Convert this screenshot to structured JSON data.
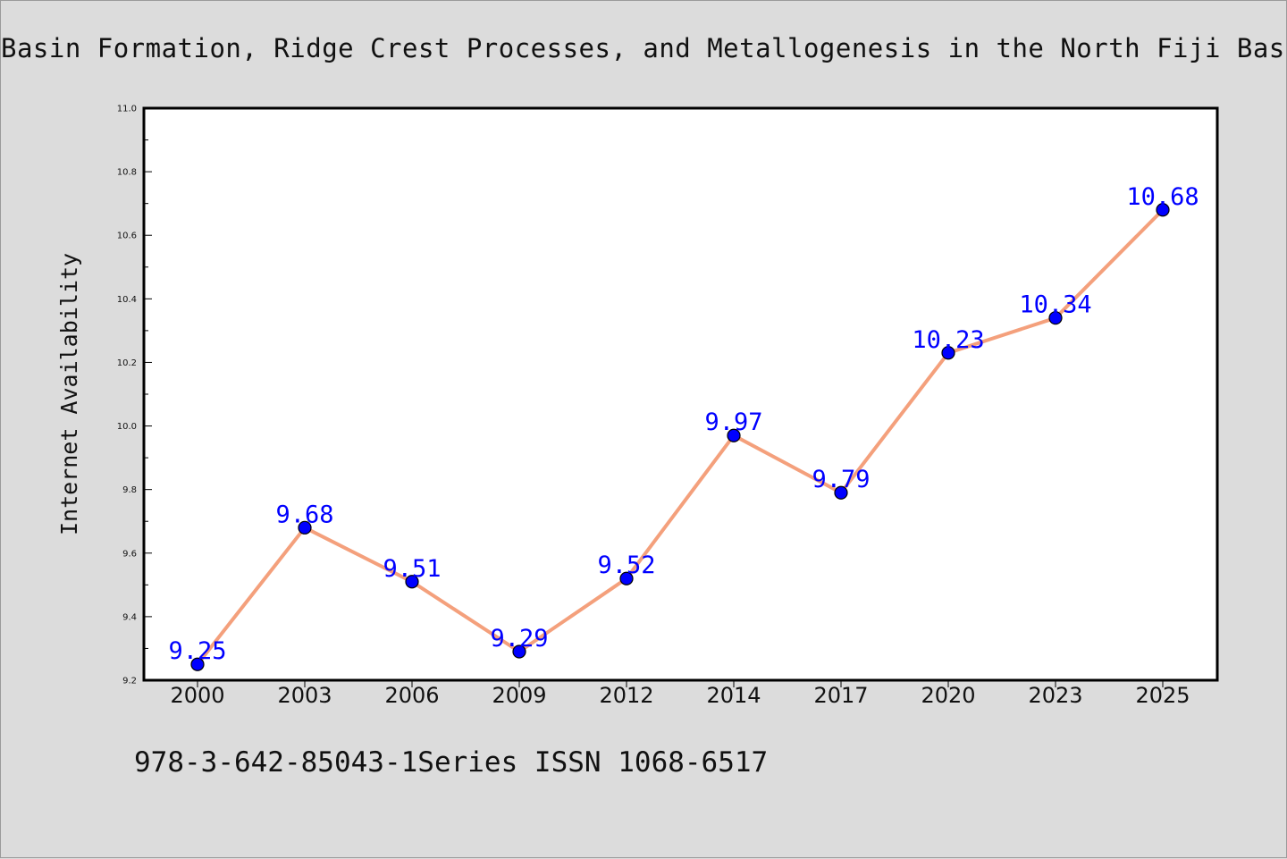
{
  "chart_data": {
    "type": "line",
    "title": "Basin Formation, Ridge Crest Processes, and Metallogenesis in the North Fiji Basin",
    "xlabel": "",
    "ylabel": "Internet Availability",
    "categories": [
      "2000",
      "2003",
      "2006",
      "2009",
      "2012",
      "2014",
      "2017",
      "2020",
      "2023",
      "2025"
    ],
    "series": [
      {
        "name": "",
        "values": [
          9.25,
          9.68,
          9.51,
          9.29,
          9.52,
          9.97,
          9.79,
          10.23,
          10.34,
          10.68
        ],
        "data_labels": [
          "9.25",
          "9.68",
          "9.51",
          "9.29",
          "9.52",
          "9.97",
          "9.79",
          "10.23",
          "10.34",
          "10.68"
        ],
        "line_color": "#f4a07c",
        "marker_color": "#0000ff",
        "label_color": "#0000ff"
      }
    ],
    "ylim": [
      9.2,
      11.0
    ],
    "yticks": [
      "9.2",
      "9.4",
      "9.6",
      "9.8",
      "10.0",
      "10.2",
      "10.4",
      "10.6",
      "10.8",
      "11.0"
    ],
    "grid": false,
    "legend": "none"
  },
  "footnote": "978-3-642-85043-1Series ISSN 1068-6517"
}
